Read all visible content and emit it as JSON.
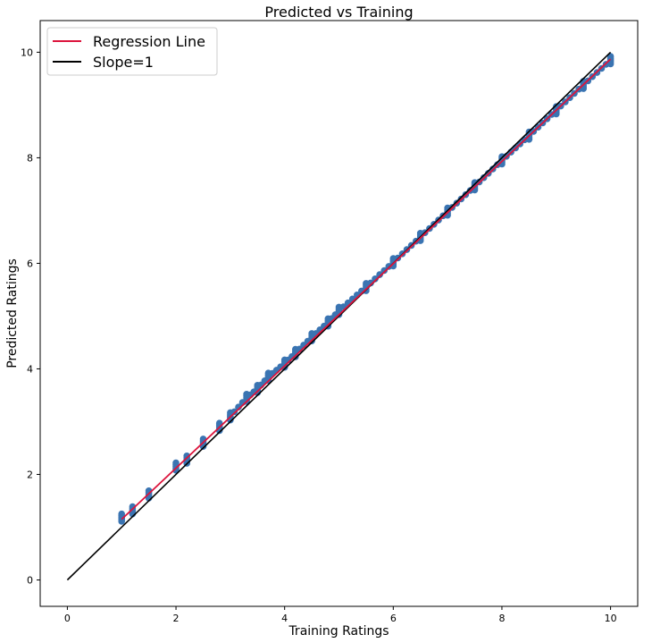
{
  "chart_data": {
    "type": "scatter",
    "title": "Predicted vs Training",
    "xlabel": "Training Ratings",
    "ylabel": "Predicted Ratings",
    "xlim": [
      -0.5,
      10.5
    ],
    "ylim": [
      -0.5,
      10.6
    ],
    "xticks": [
      "0",
      "2",
      "4",
      "6",
      "8",
      "10"
    ],
    "yticks": [
      "0",
      "2",
      "4",
      "6",
      "8",
      "10"
    ],
    "grid": false,
    "legend_position": "top-left",
    "colors": {
      "points": "#3a74b2",
      "regression": "#dc143c",
      "slope": "#000000"
    },
    "series": [
      {
        "type": "scatter",
        "cluster_centers": [
          [
            1.0,
            1.18
          ],
          [
            1.2,
            1.32
          ],
          [
            1.5,
            1.62
          ],
          [
            2.0,
            2.15
          ],
          [
            2.2,
            2.28
          ],
          [
            2.5,
            2.6
          ],
          [
            2.8,
            2.9
          ],
          [
            3.0,
            3.1
          ],
          [
            3.3,
            3.45
          ],
          [
            3.5,
            3.62
          ],
          [
            3.7,
            3.85
          ],
          [
            4.0,
            4.1
          ],
          [
            4.2,
            4.3
          ],
          [
            4.5,
            4.6
          ],
          [
            4.8,
            4.88
          ],
          [
            5.0,
            5.1
          ],
          [
            5.5,
            5.55
          ],
          [
            6.0,
            6.02
          ],
          [
            6.5,
            6.5
          ],
          [
            7.0,
            6.98
          ],
          [
            7.5,
            7.46
          ],
          [
            8.0,
            7.95
          ],
          [
            8.5,
            8.42
          ],
          [
            9.0,
            8.9
          ],
          [
            9.5,
            9.38
          ],
          [
            10.0,
            9.85
          ]
        ]
      },
      {
        "name": "Regression Line",
        "type": "line",
        "x": [
          1.0,
          10.0
        ],
        "y": [
          1.15,
          9.87
        ]
      },
      {
        "name": "Slope=1",
        "type": "line",
        "x": [
          0,
          10
        ],
        "y": [
          0,
          10
        ]
      }
    ]
  }
}
